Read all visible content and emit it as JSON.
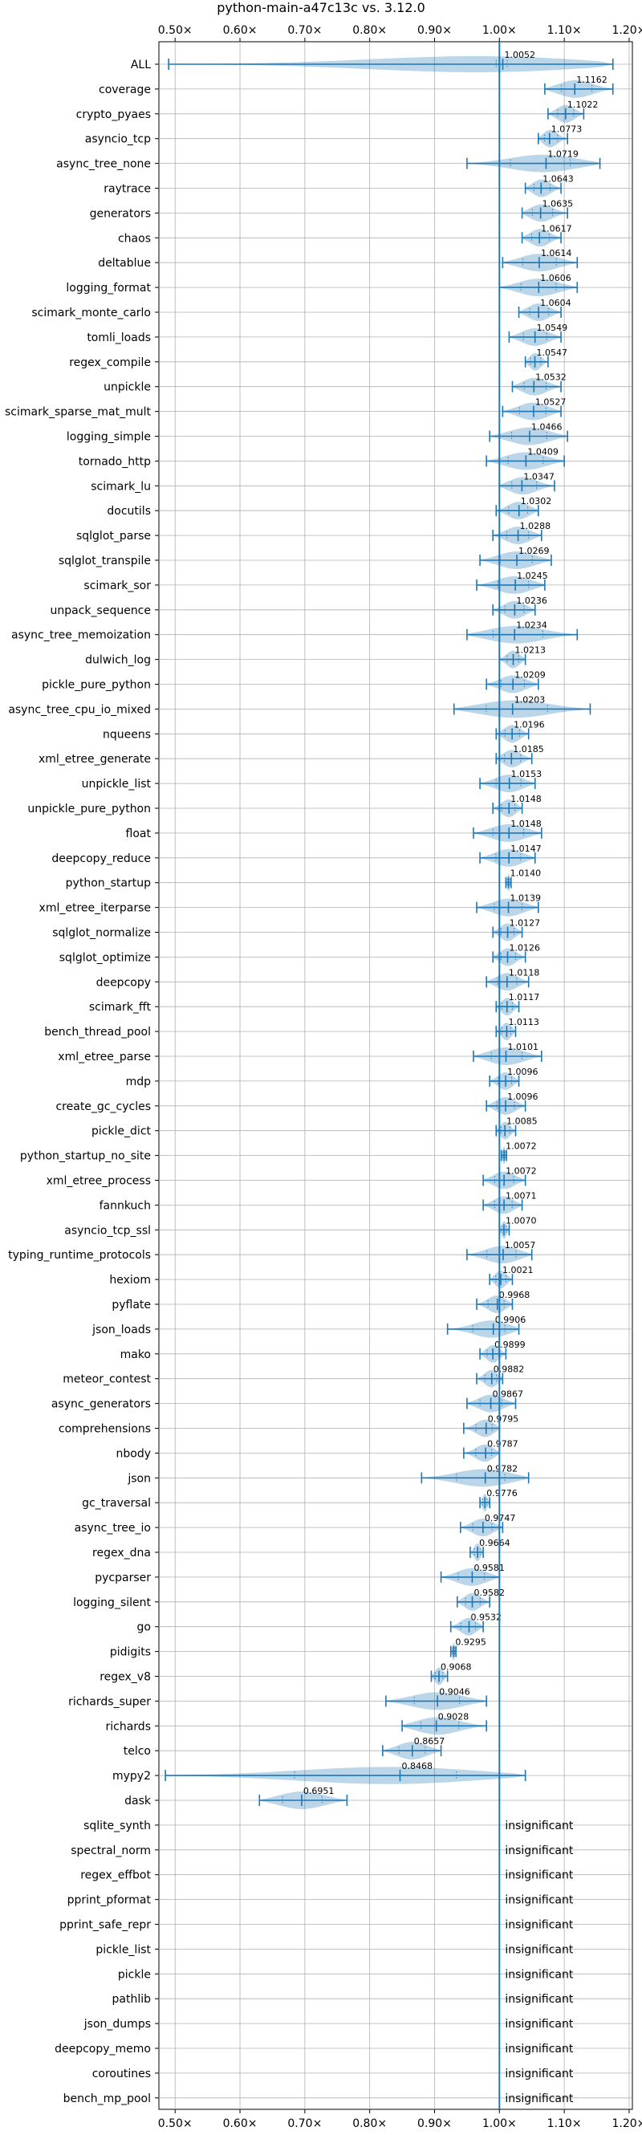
{
  "chart_data": {
    "type": "violin",
    "title": "python-main-a47c13c vs. 3.12.0",
    "xlim": [
      0.475,
      1.205
    ],
    "xticks": [
      0.5,
      0.6,
      0.7,
      0.8,
      0.9,
      1.0,
      1.1,
      1.2
    ],
    "xtick_labels": [
      "0.50×",
      "0.60×",
      "0.70×",
      "0.80×",
      "0.90×",
      "1.00×",
      "1.10×",
      "1.20×"
    ],
    "reference_x": 1.0,
    "grid": true,
    "color": "#1f77b4",
    "insignificant_label": "insignificant",
    "benchmarks": [
      {
        "name": "ALL",
        "median": 1.0052,
        "min": 0.49,
        "max": 1.175,
        "q1": 0.995,
        "q3": 1.012,
        "label": "1.0052"
      },
      {
        "name": "coverage",
        "median": 1.1162,
        "min": 1.07,
        "max": 1.175,
        "label": "1.1162"
      },
      {
        "name": "crypto_pyaes",
        "median": 1.1022,
        "min": 1.075,
        "max": 1.13,
        "label": "1.1022"
      },
      {
        "name": "asyncio_tcp",
        "median": 1.0773,
        "min": 1.06,
        "max": 1.105,
        "label": "1.0773"
      },
      {
        "name": "async_tree_none",
        "median": 1.0719,
        "min": 0.95,
        "max": 1.155,
        "label": "1.0719"
      },
      {
        "name": "raytrace",
        "median": 1.0643,
        "min": 1.04,
        "max": 1.095,
        "label": "1.0643"
      },
      {
        "name": "generators",
        "median": 1.0635,
        "min": 1.035,
        "max": 1.105,
        "label": "1.0635"
      },
      {
        "name": "chaos",
        "median": 1.0617,
        "min": 1.035,
        "max": 1.095,
        "label": "1.0617"
      },
      {
        "name": "deltablue",
        "median": 1.0614,
        "min": 1.005,
        "max": 1.12,
        "label": "1.0614"
      },
      {
        "name": "logging_format",
        "median": 1.0606,
        "min": 1.0,
        "max": 1.12,
        "label": "1.0606"
      },
      {
        "name": "scimark_monte_carlo",
        "median": 1.0604,
        "min": 1.03,
        "max": 1.095,
        "label": "1.0604"
      },
      {
        "name": "tomli_loads",
        "median": 1.0549,
        "min": 1.015,
        "max": 1.095,
        "label": "1.0549"
      },
      {
        "name": "regex_compile",
        "median": 1.0547,
        "min": 1.04,
        "max": 1.075,
        "label": "1.0547"
      },
      {
        "name": "unpickle",
        "median": 1.0532,
        "min": 1.02,
        "max": 1.095,
        "label": "1.0532"
      },
      {
        "name": "scimark_sparse_mat_mult",
        "median": 1.0527,
        "min": 1.005,
        "max": 1.095,
        "label": "1.0527"
      },
      {
        "name": "logging_simple",
        "median": 1.0466,
        "min": 0.985,
        "max": 1.105,
        "label": "1.0466"
      },
      {
        "name": "tornado_http",
        "median": 1.0409,
        "min": 0.98,
        "max": 1.1,
        "label": "1.0409"
      },
      {
        "name": "scimark_lu",
        "median": 1.0347,
        "min": 1.0,
        "max": 1.085,
        "label": "1.0347"
      },
      {
        "name": "docutils",
        "median": 1.0302,
        "min": 0.995,
        "max": 1.06,
        "label": "1.0302"
      },
      {
        "name": "sqlglot_parse",
        "median": 1.0288,
        "min": 0.99,
        "max": 1.065,
        "label": "1.0288"
      },
      {
        "name": "sqlglot_transpile",
        "median": 1.0269,
        "min": 0.97,
        "max": 1.08,
        "label": "1.0269"
      },
      {
        "name": "scimark_sor",
        "median": 1.0245,
        "min": 0.965,
        "max": 1.07,
        "label": "1.0245"
      },
      {
        "name": "unpack_sequence",
        "median": 1.0236,
        "min": 0.99,
        "max": 1.055,
        "label": "1.0236"
      },
      {
        "name": "async_tree_memoization",
        "median": 1.0234,
        "min": 0.95,
        "max": 1.12,
        "label": "1.0234"
      },
      {
        "name": "dulwich_log",
        "median": 1.0213,
        "min": 1.0,
        "max": 1.04,
        "label": "1.0213"
      },
      {
        "name": "pickle_pure_python",
        "median": 1.0209,
        "min": 0.98,
        "max": 1.06,
        "label": "1.0209"
      },
      {
        "name": "async_tree_cpu_io_mixed",
        "median": 1.0203,
        "min": 0.93,
        "max": 1.14,
        "label": "1.0203"
      },
      {
        "name": "nqueens",
        "median": 1.0196,
        "min": 0.995,
        "max": 1.045,
        "label": "1.0196"
      },
      {
        "name": "xml_etree_generate",
        "median": 1.0185,
        "min": 0.995,
        "max": 1.05,
        "label": "1.0185"
      },
      {
        "name": "unpickle_list",
        "median": 1.0153,
        "min": 0.97,
        "max": 1.055,
        "label": "1.0153"
      },
      {
        "name": "unpickle_pure_python",
        "median": 1.0148,
        "min": 0.99,
        "max": 1.035,
        "label": "1.0148"
      },
      {
        "name": "float",
        "median": 1.0148,
        "min": 0.96,
        "max": 1.065,
        "label": "1.0148"
      },
      {
        "name": "deepcopy_reduce",
        "median": 1.0147,
        "min": 0.97,
        "max": 1.055,
        "label": "1.0147"
      },
      {
        "name": "python_startup",
        "median": 1.014,
        "min": 1.01,
        "max": 1.018,
        "label": "1.0140"
      },
      {
        "name": "xml_etree_iterparse",
        "median": 1.0139,
        "min": 0.965,
        "max": 1.06,
        "label": "1.0139"
      },
      {
        "name": "sqlglot_normalize",
        "median": 1.0127,
        "min": 0.99,
        "max": 1.035,
        "label": "1.0127"
      },
      {
        "name": "sqlglot_optimize",
        "median": 1.0126,
        "min": 0.99,
        "max": 1.04,
        "label": "1.0126"
      },
      {
        "name": "deepcopy",
        "median": 1.0118,
        "min": 0.98,
        "max": 1.045,
        "label": "1.0118"
      },
      {
        "name": "scimark_fft",
        "median": 1.0117,
        "min": 0.995,
        "max": 1.03,
        "label": "1.0117"
      },
      {
        "name": "bench_thread_pool",
        "median": 1.0113,
        "min": 0.995,
        "max": 1.025,
        "label": "1.0113"
      },
      {
        "name": "xml_etree_parse",
        "median": 1.0101,
        "min": 0.96,
        "max": 1.065,
        "label": "1.0101"
      },
      {
        "name": "mdp",
        "median": 1.0096,
        "min": 0.985,
        "max": 1.03,
        "label": "1.0096"
      },
      {
        "name": "create_gc_cycles",
        "median": 1.0096,
        "min": 0.98,
        "max": 1.04,
        "label": "1.0096"
      },
      {
        "name": "pickle_dict",
        "median": 1.0085,
        "min": 0.995,
        "max": 1.025,
        "label": "1.0085"
      },
      {
        "name": "python_startup_no_site",
        "median": 1.0072,
        "min": 1.003,
        "max": 1.011,
        "label": "1.0072"
      },
      {
        "name": "xml_etree_process",
        "median": 1.0072,
        "min": 0.975,
        "max": 1.04,
        "label": "1.0072"
      },
      {
        "name": "fannkuch",
        "median": 1.0071,
        "min": 0.975,
        "max": 1.035,
        "label": "1.0071"
      },
      {
        "name": "asyncio_tcp_ssl",
        "median": 1.007,
        "min": 1.0,
        "max": 1.015,
        "label": "1.0070"
      },
      {
        "name": "typing_runtime_protocols",
        "median": 1.0057,
        "min": 0.95,
        "max": 1.05,
        "label": "1.0057"
      },
      {
        "name": "hexiom",
        "median": 1.0021,
        "min": 0.985,
        "max": 1.02,
        "label": "1.0021"
      },
      {
        "name": "pyflate",
        "median": 0.9968,
        "min": 0.965,
        "max": 1.02,
        "label": "0.9968"
      },
      {
        "name": "json_loads",
        "median": 0.9906,
        "min": 0.92,
        "max": 1.03,
        "label": "0.9906"
      },
      {
        "name": "mako",
        "median": 0.9899,
        "min": 0.97,
        "max": 1.01,
        "label": "0.9899"
      },
      {
        "name": "meteor_contest",
        "median": 0.9882,
        "min": 0.965,
        "max": 1.005,
        "label": "0.9882"
      },
      {
        "name": "async_generators",
        "median": 0.9867,
        "min": 0.95,
        "max": 1.025,
        "label": "0.9867"
      },
      {
        "name": "comprehensions",
        "median": 0.9795,
        "min": 0.945,
        "max": 1.0,
        "label": "0.9795"
      },
      {
        "name": "nbody",
        "median": 0.9787,
        "min": 0.945,
        "max": 1.0,
        "label": "0.9787"
      },
      {
        "name": "json",
        "median": 0.9782,
        "min": 0.88,
        "max": 1.045,
        "label": "0.9782"
      },
      {
        "name": "gc_traversal",
        "median": 0.9776,
        "min": 0.97,
        "max": 0.985,
        "label": "0.9776"
      },
      {
        "name": "async_tree_io",
        "median": 0.9747,
        "min": 0.94,
        "max": 1.005,
        "label": "0.9747"
      },
      {
        "name": "regex_dna",
        "median": 0.9664,
        "min": 0.955,
        "max": 0.975,
        "label": "0.9664"
      },
      {
        "name": "pycparser",
        "median": 0.9581,
        "min": 0.91,
        "max": 1.0,
        "label": "0.9581"
      },
      {
        "name": "logging_silent",
        "median": 0.9582,
        "min": 0.935,
        "max": 0.985,
        "label": "0.9582"
      },
      {
        "name": "go",
        "median": 0.9532,
        "min": 0.925,
        "max": 0.975,
        "label": "0.9532"
      },
      {
        "name": "pidigits",
        "median": 0.9295,
        "min": 0.925,
        "max": 0.933,
        "label": "0.9295"
      },
      {
        "name": "regex_v8",
        "median": 0.9068,
        "min": 0.895,
        "max": 0.92,
        "label": "0.9068"
      },
      {
        "name": "richards_super",
        "median": 0.9046,
        "min": 0.825,
        "max": 0.98,
        "label": "0.9046"
      },
      {
        "name": "richards",
        "median": 0.9028,
        "min": 0.85,
        "max": 0.98,
        "label": "0.9028"
      },
      {
        "name": "telco",
        "median": 0.8657,
        "min": 0.82,
        "max": 0.91,
        "label": "0.8657"
      },
      {
        "name": "mypy2",
        "median": 0.8468,
        "min": 0.485,
        "max": 1.04,
        "label": "0.8468"
      },
      {
        "name": "dask",
        "median": 0.6951,
        "min": 0.63,
        "max": 0.765,
        "label": "0.6951"
      },
      {
        "name": "sqlite_synth",
        "insignificant": true
      },
      {
        "name": "spectral_norm",
        "insignificant": true
      },
      {
        "name": "regex_effbot",
        "insignificant": true
      },
      {
        "name": "pprint_pformat",
        "insignificant": true
      },
      {
        "name": "pprint_safe_repr",
        "insignificant": true
      },
      {
        "name": "pickle_list",
        "insignificant": true
      },
      {
        "name": "pickle",
        "insignificant": true
      },
      {
        "name": "pathlib",
        "insignificant": true
      },
      {
        "name": "json_dumps",
        "insignificant": true
      },
      {
        "name": "deepcopy_memo",
        "insignificant": true
      },
      {
        "name": "coroutines",
        "insignificant": true
      },
      {
        "name": "bench_mp_pool",
        "insignificant": true
      }
    ]
  }
}
